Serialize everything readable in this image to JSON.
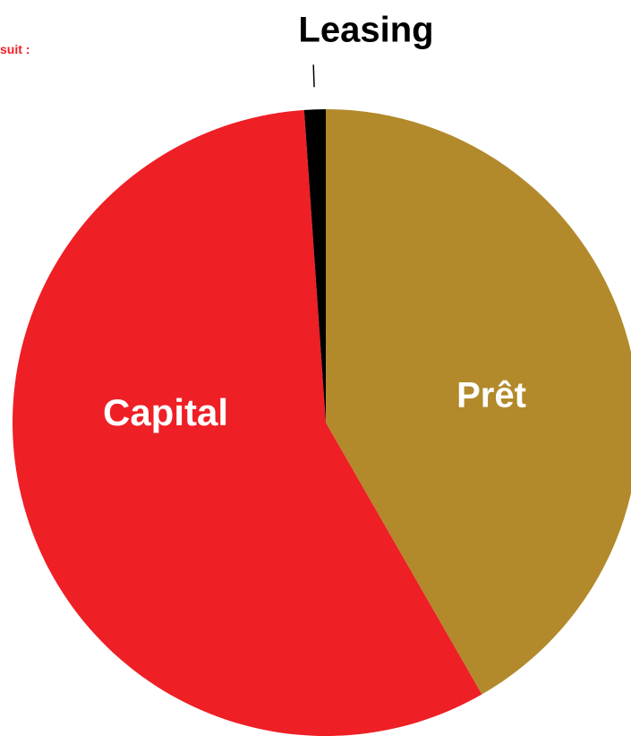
{
  "intro_text": "suit :",
  "colors": {
    "pret": "#b28a2b",
    "capital": "#ee1f25",
    "leasing": "#000000",
    "background": "#ffffff",
    "intro_text": "#ee1f25"
  },
  "chart_data": {
    "type": "pie",
    "title": "",
    "start_angle_deg": 0,
    "direction": "clockwise",
    "slices": [
      {
        "label": "Prêt",
        "value": 41.7,
        "color": "#b28a2b",
        "label_color": "#ffffff",
        "label_position": "inside"
      },
      {
        "label": "Capital",
        "value": 57.2,
        "color": "#ee1f25",
        "label_color": "#ffffff",
        "label_position": "inside"
      },
      {
        "label": "Leasing",
        "value": 1.1,
        "color": "#000000",
        "label_color": "#000000",
        "label_position": "outside-leader"
      }
    ],
    "legend": "none"
  }
}
